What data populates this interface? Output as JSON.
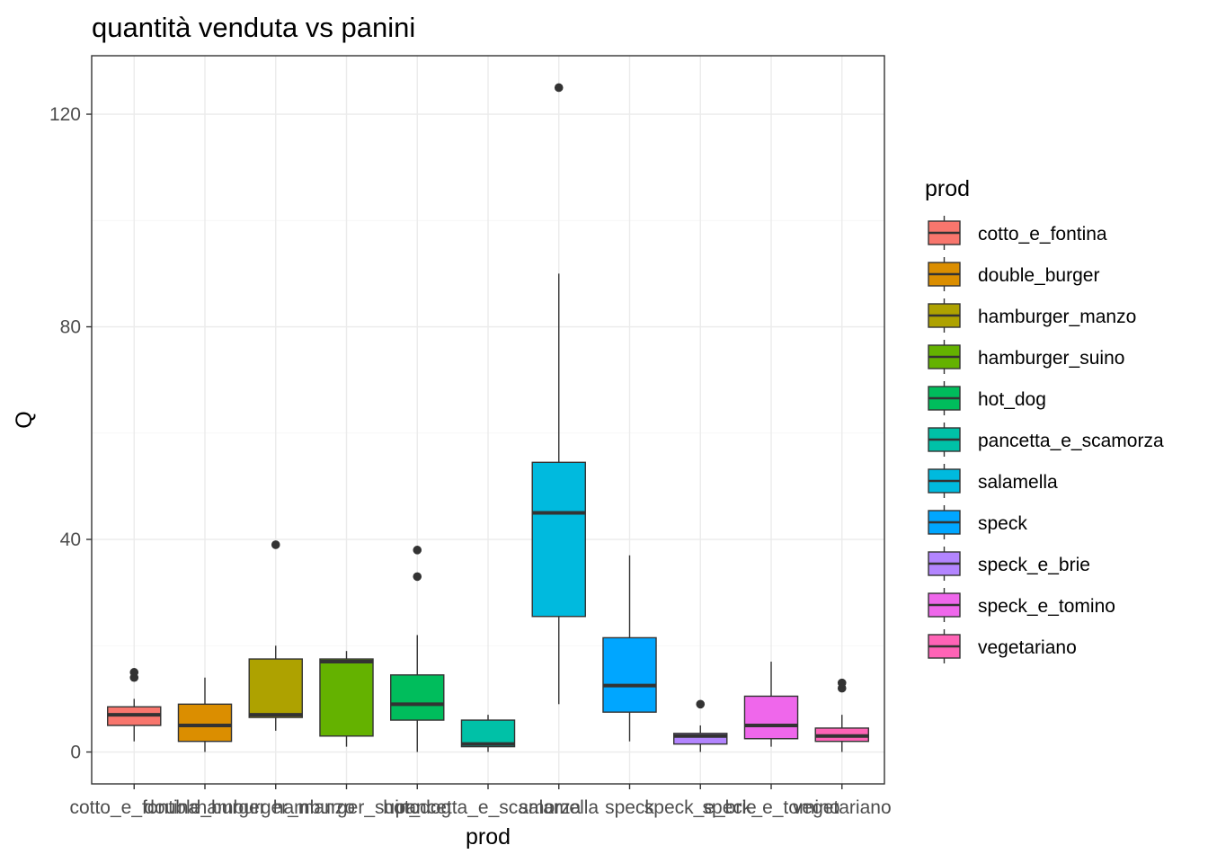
{
  "chart_data": {
    "type": "boxplot",
    "title": "quantità venduta vs panini",
    "xlabel": "prod",
    "ylabel": "Q",
    "ylim": [
      -6,
      131
    ],
    "y_ticks": [
      0,
      40,
      80,
      120
    ],
    "legend_title": "prod",
    "legend_position": "right",
    "grid": true,
    "categories": [
      "cotto_e_fontina",
      "double_burger",
      "hamburger_manzo",
      "hamburger_suino",
      "hot_dog",
      "pancetta_e_scamorza",
      "salamella",
      "speck",
      "speck_e_brie",
      "speck_e_tomino",
      "vegetariano"
    ],
    "colors": [
      "#F8766D",
      "#DB8E00",
      "#AEA200",
      "#64B200",
      "#00BD5C",
      "#00C1A7",
      "#00BADE",
      "#00A6FF",
      "#B385FF",
      "#EF67EB",
      "#FF63B6"
    ],
    "boxes": [
      {
        "whisker_low": 2,
        "q1": 5,
        "median": 7,
        "q3": 8.5,
        "whisker_high": 10,
        "outliers": [
          14,
          15
        ]
      },
      {
        "whisker_low": 0,
        "q1": 2,
        "median": 5,
        "q3": 9,
        "whisker_high": 14,
        "outliers": []
      },
      {
        "whisker_low": 4,
        "q1": 6.5,
        "median": 7,
        "q3": 17.5,
        "whisker_high": 20,
        "outliers": [
          39
        ]
      },
      {
        "whisker_low": 1,
        "q1": 3,
        "median": 17,
        "q3": 17.5,
        "whisker_high": 19,
        "outliers": []
      },
      {
        "whisker_low": 0,
        "q1": 6,
        "median": 9,
        "q3": 14.5,
        "whisker_high": 22,
        "outliers": [
          33,
          38
        ]
      },
      {
        "whisker_low": 0,
        "q1": 1,
        "median": 1.5,
        "q3": 6,
        "whisker_high": 7,
        "outliers": []
      },
      {
        "whisker_low": 9,
        "q1": 25.5,
        "median": 45,
        "q3": 54.5,
        "whisker_high": 90,
        "outliers": [
          125
        ]
      },
      {
        "whisker_low": 2,
        "q1": 7.5,
        "median": 12.5,
        "q3": 21.5,
        "whisker_high": 37,
        "outliers": []
      },
      {
        "whisker_low": 0,
        "q1": 1.5,
        "median": 3,
        "q3": 3.5,
        "whisker_high": 5,
        "outliers": [
          9
        ]
      },
      {
        "whisker_low": 1,
        "q1": 2.5,
        "median": 5,
        "q3": 10.5,
        "whisker_high": 17,
        "outliers": []
      },
      {
        "whisker_low": 0,
        "q1": 2,
        "median": 3,
        "q3": 4.5,
        "whisker_high": 7,
        "outliers": [
          12,
          13
        ]
      }
    ]
  }
}
